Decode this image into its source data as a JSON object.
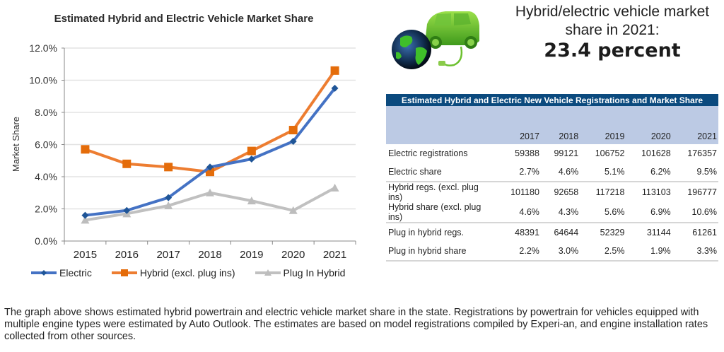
{
  "chart_data": {
    "type": "line",
    "title": "Estimated Hybrid and Electric Vehicle Market Share",
    "xlabel": "",
    "ylabel": "Market Share",
    "categories": [
      "2015",
      "2016",
      "2017",
      "2018",
      "2019",
      "2020",
      "2021"
    ],
    "ylim": [
      0,
      12
    ],
    "yticks": [
      "0.0%",
      "2.0%",
      "4.0%",
      "6.0%",
      "8.0%",
      "10.0%",
      "12.0%"
    ],
    "grid": true,
    "legend_position": "bottom",
    "series": [
      {
        "name": "Electric",
        "color": "#4472c4",
        "marker_color": "#1f5597",
        "marker": "diamond",
        "values": [
          1.6,
          1.9,
          2.7,
          4.6,
          5.1,
          6.2,
          9.5
        ]
      },
      {
        "name": "Hybrid (excl. plug ins)",
        "color": "#ed7d31",
        "marker_color": "#e46c0a",
        "marker": "square",
        "values": [
          5.7,
          4.8,
          4.6,
          4.3,
          5.6,
          6.9,
          10.6
        ]
      },
      {
        "name": "Plug In Hybrid",
        "color": "#c0c0c0",
        "marker_color": "#bdbdbd",
        "marker": "triangle",
        "values": [
          1.3,
          1.7,
          2.2,
          3.0,
          2.5,
          1.9,
          3.3
        ]
      }
    ]
  },
  "image": {
    "icon": "green-car-and-globe-icon"
  },
  "headline": {
    "line1": "Hybrid/electric vehicle market",
    "line2": "share in 2021:",
    "value": "23.4 percent"
  },
  "table": {
    "title": "Estimated Hybrid and Electric New Vehicle Registrations and Market Share",
    "years": [
      "2017",
      "2018",
      "2019",
      "2020",
      "2021"
    ],
    "rows": [
      {
        "label": "Electric registrations",
        "values": [
          "59388",
          "99121",
          "106752",
          "101628",
          "176357"
        ]
      },
      {
        "label": "Electric share",
        "values": [
          "2.7%",
          "4.6%",
          "5.1%",
          "6.2%",
          "9.5%"
        ]
      },
      {
        "label": "Hybrid regs. (excl. plug ins)",
        "values": [
          "101180",
          "92658",
          "117218",
          "113103",
          "196777"
        ]
      },
      {
        "label": "Hybrid share (excl. plug ins)",
        "values": [
          "4.6%",
          "4.3%",
          "5.6%",
          "6.9%",
          "10.6%"
        ]
      },
      {
        "label": "Plug in hybrid regs.",
        "values": [
          "48391",
          "64644",
          "52329",
          "31144",
          "61261"
        ]
      },
      {
        "label": "Plug in hybrid share",
        "values": [
          "2.2%",
          "3.0%",
          "2.5%",
          "1.9%",
          "3.3%"
        ]
      }
    ]
  },
  "caption": "The graph above shows estimated hybrid powertrain and electric vehicle market share in the state. Registrations by powertrain for vehicles equipped with multiple engine types were estimated by Auto Outlook. The estimates are based on model registrations compiled by Experi-an, and engine installation rates collected from other sources."
}
